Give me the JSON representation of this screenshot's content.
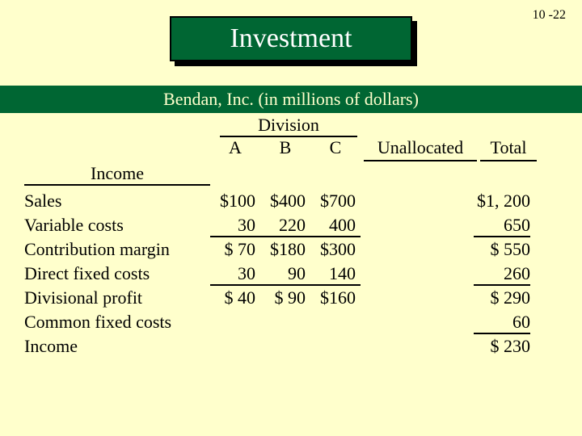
{
  "page_number": "10 -22",
  "title": "Investment",
  "subtitle": "Bendan, Inc. (in millions of dollars)",
  "division_header": "Division",
  "col_headers": {
    "a": "A",
    "b": "B",
    "c": "C",
    "unallocated": "Unallocated",
    "total": "Total"
  },
  "income_header": "Income",
  "rows": [
    {
      "label": "Sales",
      "a": "$100",
      "b": "$400",
      "c": "$700",
      "un": "",
      "total": "$1, 200",
      "underline": false
    },
    {
      "label": "Variable costs",
      "a": "30",
      "b": "220",
      "c": "400",
      "un": "",
      "total": "650",
      "underline": true
    },
    {
      "label": "Contribution margin",
      "a": "$  70",
      "b": "$180",
      "c": "$300",
      "un": "",
      "total": "$   550",
      "underline": false
    },
    {
      "label": "Direct fixed costs",
      "a": "30",
      "b": "90",
      "c": "140",
      "un": "",
      "total": "260",
      "underline": true
    },
    {
      "label": "Divisional profit",
      "a": "$  40",
      "b": "$  90",
      "c": "$160",
      "un": "",
      "total": "$   290",
      "underline": false
    },
    {
      "label": "Common fixed costs",
      "a": "",
      "b": "",
      "c": "",
      "un": "",
      "total": "60",
      "underline": true
    },
    {
      "label": "Income",
      "a": "",
      "b": "",
      "c": "",
      "un": "",
      "total": "$   230",
      "underline": false
    }
  ],
  "colors": {
    "background": "#ffffcc",
    "header_bg": "#006633",
    "header_text": "#ffffcc",
    "title_text": "#ffffff",
    "text": "#000000"
  }
}
